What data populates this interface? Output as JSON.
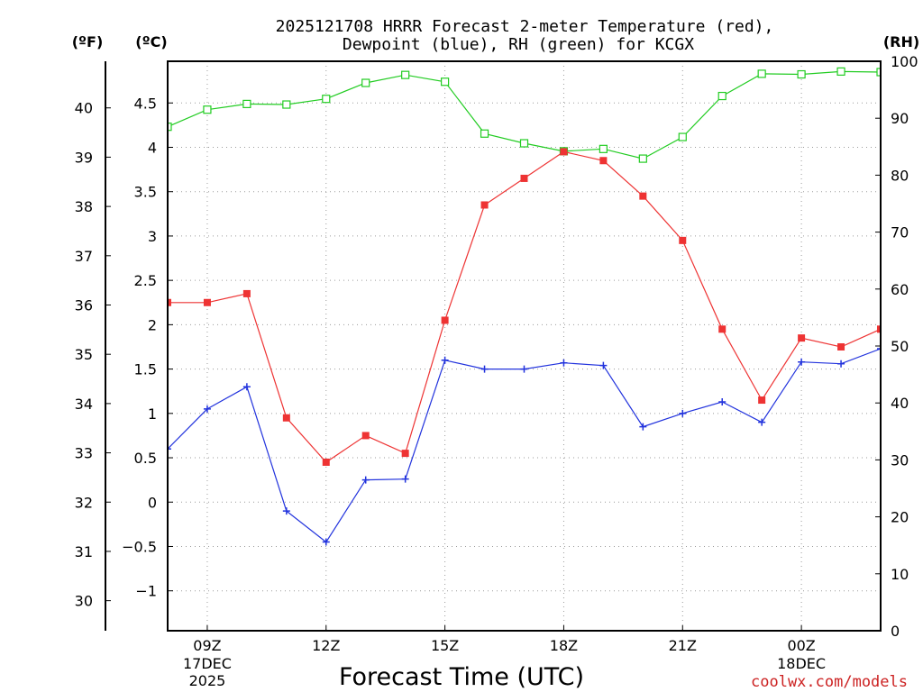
{
  "chart_data": {
    "type": "line",
    "title_line1": "2025121708 HRRR Forecast 2-meter Temperature (red),",
    "title_line2": "Dewpoint (blue), RH (green) for KCGX",
    "xlabel": "Forecast Time (UTC)",
    "left_outer_unit": "(ºF)",
    "left_inner_unit": "(ºC)",
    "right_unit": "(RH)",
    "credit": "coolwx.com/models",
    "x_hours": [
      8,
      9,
      10,
      11,
      12,
      13,
      14,
      15,
      16,
      17,
      18,
      19,
      20,
      21,
      22,
      23,
      24,
      25,
      26
    ],
    "x_range": [
      8,
      26
    ],
    "x_ticks": [
      {
        "hour": 9,
        "label": "09Z",
        "sub1": "17DEC",
        "sub2": "2025"
      },
      {
        "hour": 12,
        "label": "12Z",
        "sub1": "",
        "sub2": ""
      },
      {
        "hour": 15,
        "label": "15Z",
        "sub1": "",
        "sub2": ""
      },
      {
        "hour": 18,
        "label": "18Z",
        "sub1": "",
        "sub2": ""
      },
      {
        "hour": 21,
        "label": "21Z",
        "sub1": "",
        "sub2": ""
      },
      {
        "hour": 24,
        "label": "00Z",
        "sub1": "18DEC",
        "sub2": ""
      }
    ],
    "celsius_range": [
      -1.45,
      4.97
    ],
    "celsius_ticks": [
      "-1",
      "-0.5",
      "0",
      "0.5",
      "1",
      "1.5",
      "2",
      "2.5",
      "3",
      "3.5",
      "4",
      "4.5"
    ],
    "fahrenheit_ticks": [
      "30",
      "31",
      "32",
      "33",
      "34",
      "35",
      "36",
      "37",
      "38",
      "39",
      "40"
    ],
    "rh_range": [
      0,
      100
    ],
    "rh_ticks": [
      "0",
      "10",
      "20",
      "30",
      "40",
      "50",
      "60",
      "70",
      "80",
      "90",
      "100"
    ],
    "colors": {
      "temperature": "#ee3333",
      "dewpoint": "#2233dd",
      "rh": "#22cc22",
      "credit": "#cc2222",
      "grid": "#9a9a9a"
    },
    "series": [
      {
        "name": "Temperature",
        "unit": "C",
        "values": [
          2.25,
          2.25,
          2.35,
          0.95,
          0.45,
          0.75,
          0.55,
          2.05,
          3.35,
          3.65,
          3.95,
          3.85,
          3.45,
          2.95,
          1.95,
          1.15,
          1.85,
          1.75,
          1.95
        ]
      },
      {
        "name": "Dewpoint",
        "unit": "C",
        "values": [
          0.6,
          1.05,
          1.3,
          -0.1,
          -0.45,
          0.25,
          0.26,
          1.6,
          1.5,
          1.5,
          1.57,
          1.54,
          0.85,
          1.0,
          1.13,
          0.9,
          1.58,
          1.56,
          1.73
        ]
      },
      {
        "name": "RH",
        "unit": "%",
        "values": [
          88.5,
          91.5,
          92.5,
          92.4,
          93.4,
          96.2,
          97.6,
          96.4,
          87.3,
          85.6,
          84.2,
          84.6,
          82.9,
          86.7,
          93.9,
          97.8,
          97.7,
          98.2,
          98.1
        ]
      }
    ]
  }
}
